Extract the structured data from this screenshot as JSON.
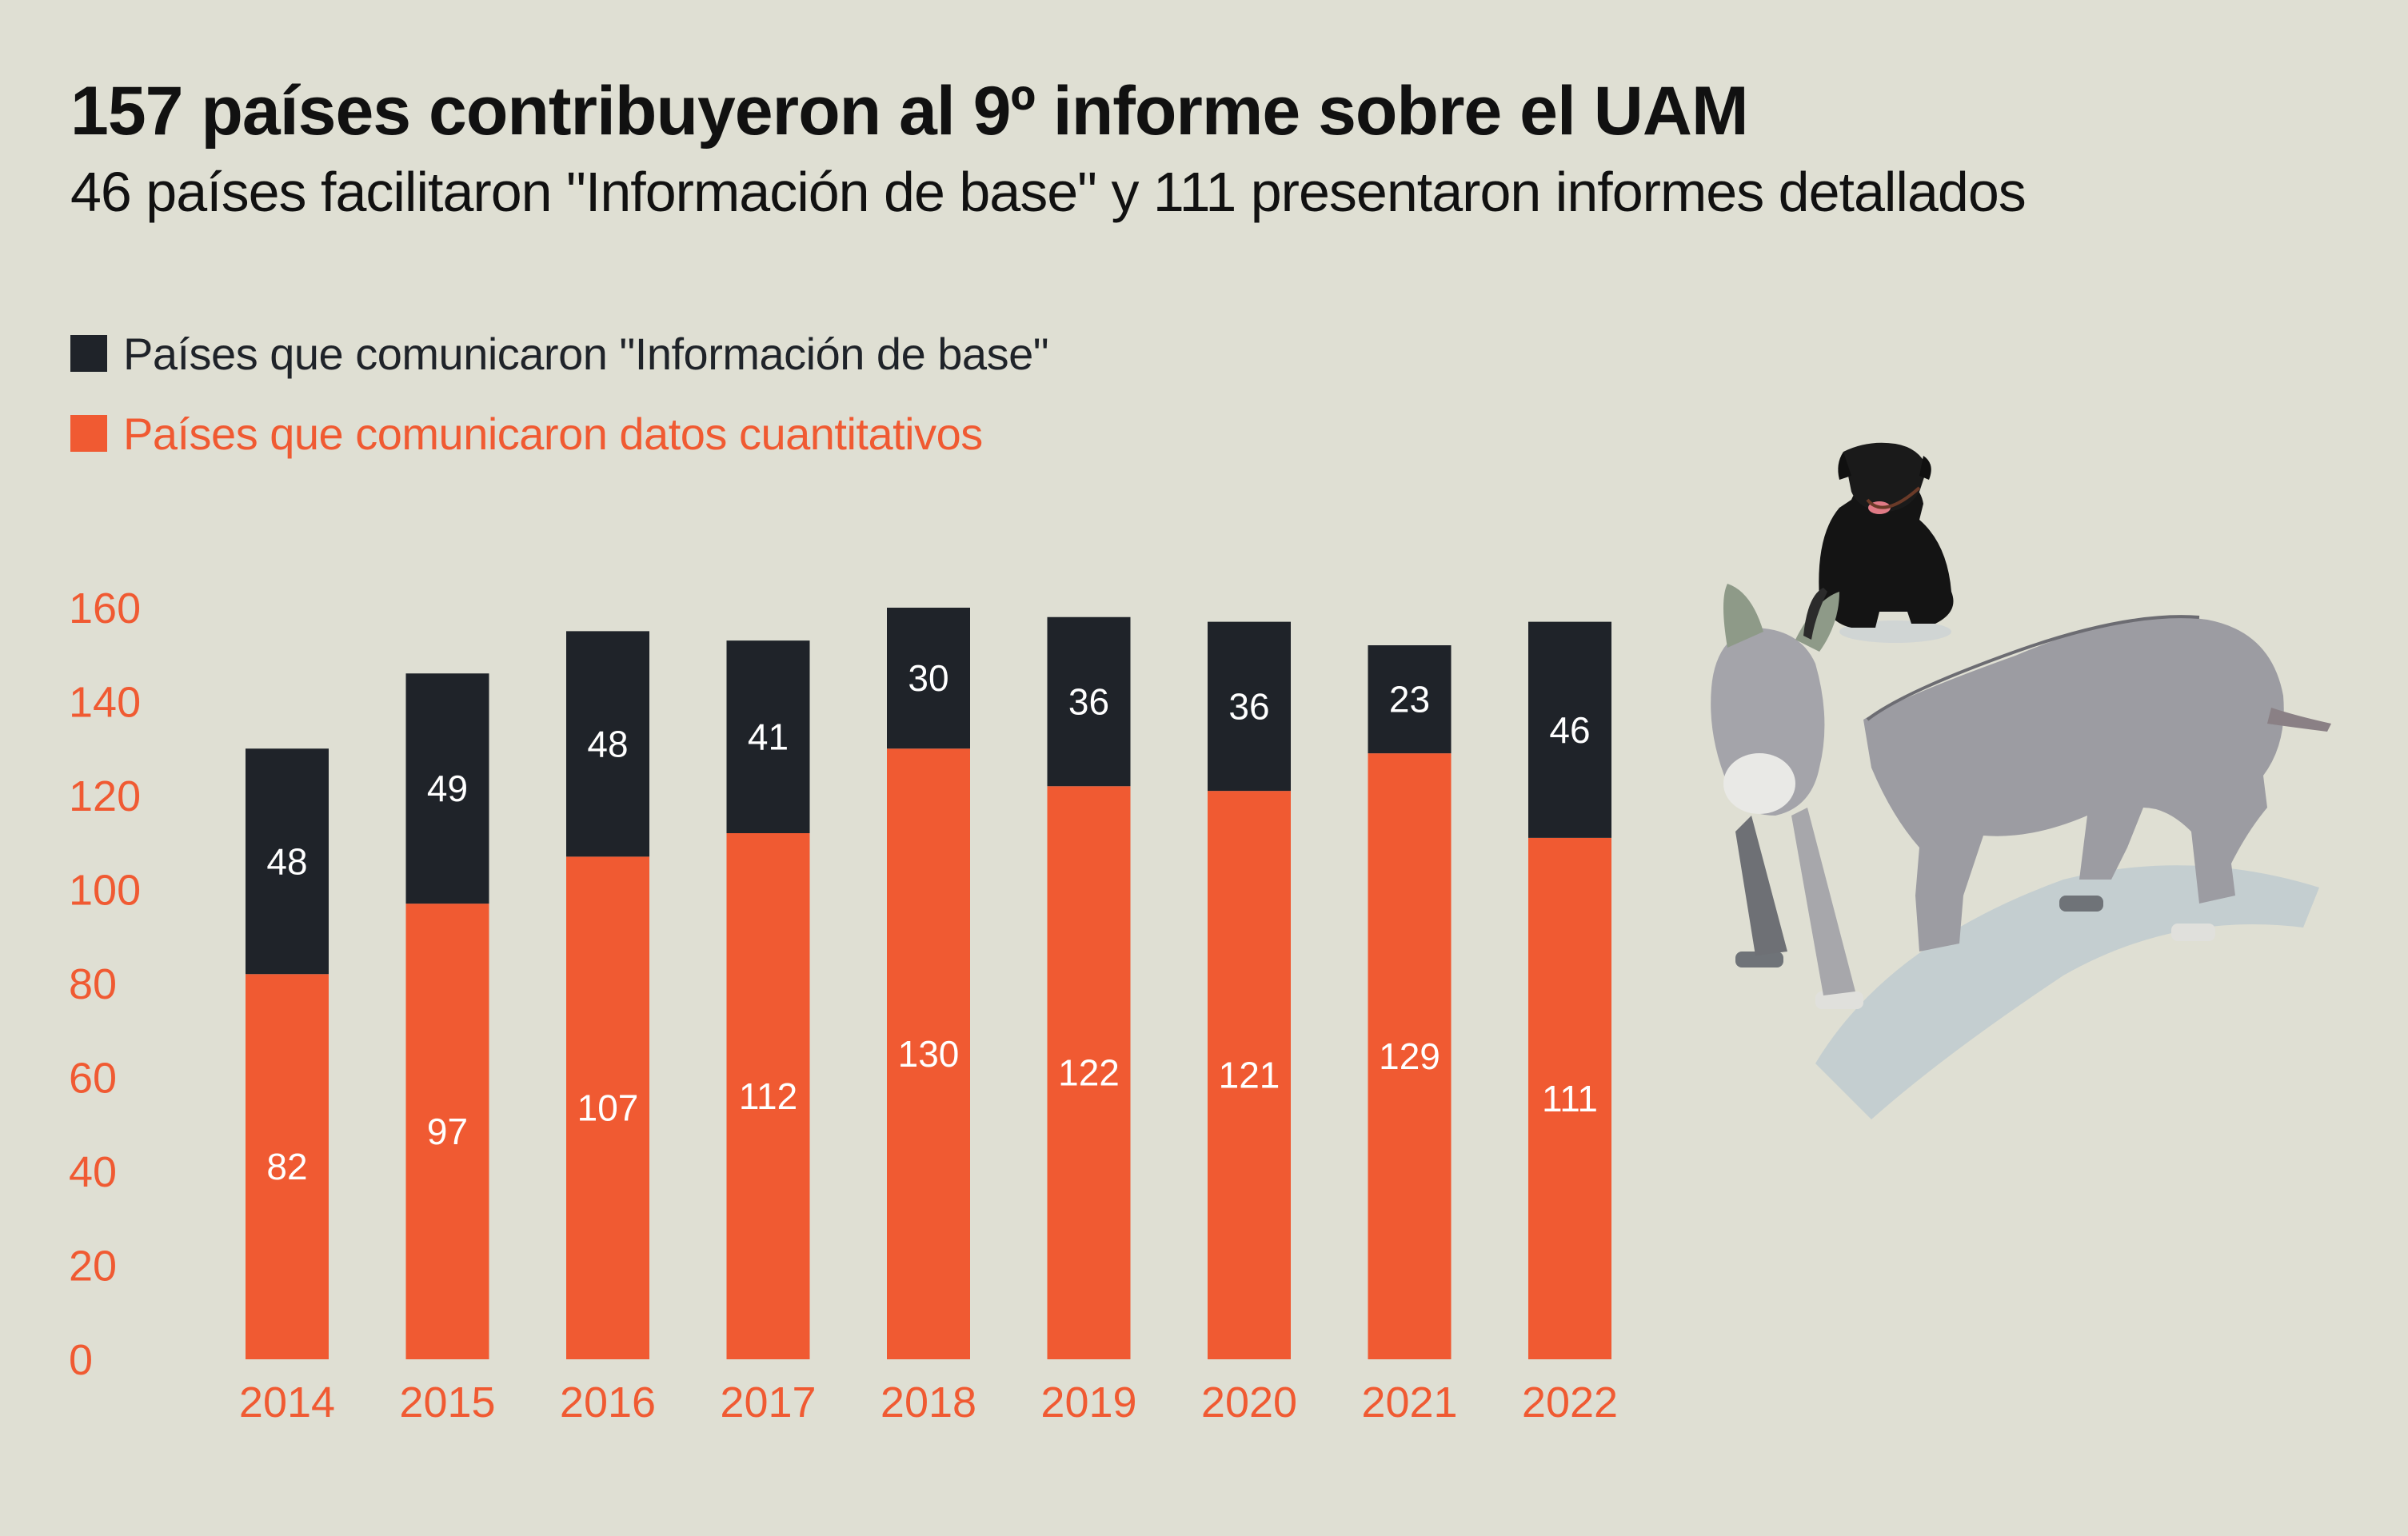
{
  "header": {
    "title": "157 países contribuyeron al 9º informe sobre el UAM",
    "subtitle": "46 países facilitaron \"Información de base\" y 111 presentaron informes detallados"
  },
  "colors": {
    "background": "#dfdfd3",
    "baseline_info": "#1f2329",
    "quantitative": "#f05a32",
    "text": "#111111",
    "bar_label": "#ffffff"
  },
  "legend": [
    {
      "label": "Países que comunicaron \"Información de base\"",
      "color": "#1f2329",
      "text_color": "#1f2329"
    },
    {
      "label": "Países que comunicaron datos cuantitativos",
      "color": "#f05a32",
      "text_color": "#f05a32"
    }
  ],
  "illustration": {
    "items": [
      "black-dog",
      "grey-donkey"
    ]
  },
  "chart_data": {
    "type": "bar",
    "stacked": true,
    "title": "157 países contribuyeron al 9º informe sobre el UAM",
    "subtitle": "46 países facilitaron \"Información de base\" y 111 presentaron informes detallados",
    "xlabel": "",
    "ylabel": "",
    "categories": [
      "2014",
      "2015",
      "2016",
      "2017",
      "2018",
      "2019",
      "2020",
      "2021",
      "2022"
    ],
    "series": [
      {
        "name": "Países que comunicaron datos cuantitativos",
        "color": "#f05a32",
        "values": [
          82,
          97,
          107,
          112,
          130,
          122,
          121,
          129,
          111
        ]
      },
      {
        "name": "Países que comunicaron \"Información de base\"",
        "color": "#1f2329",
        "values": [
          48,
          49,
          48,
          41,
          30,
          36,
          36,
          23,
          46
        ]
      }
    ],
    "ylim": [
      0,
      160
    ],
    "yticks": [
      0,
      20,
      40,
      60,
      80,
      100,
      120,
      140,
      160
    ],
    "grid": false,
    "legend_position": "top-left",
    "tick_color": "#f05a32"
  }
}
